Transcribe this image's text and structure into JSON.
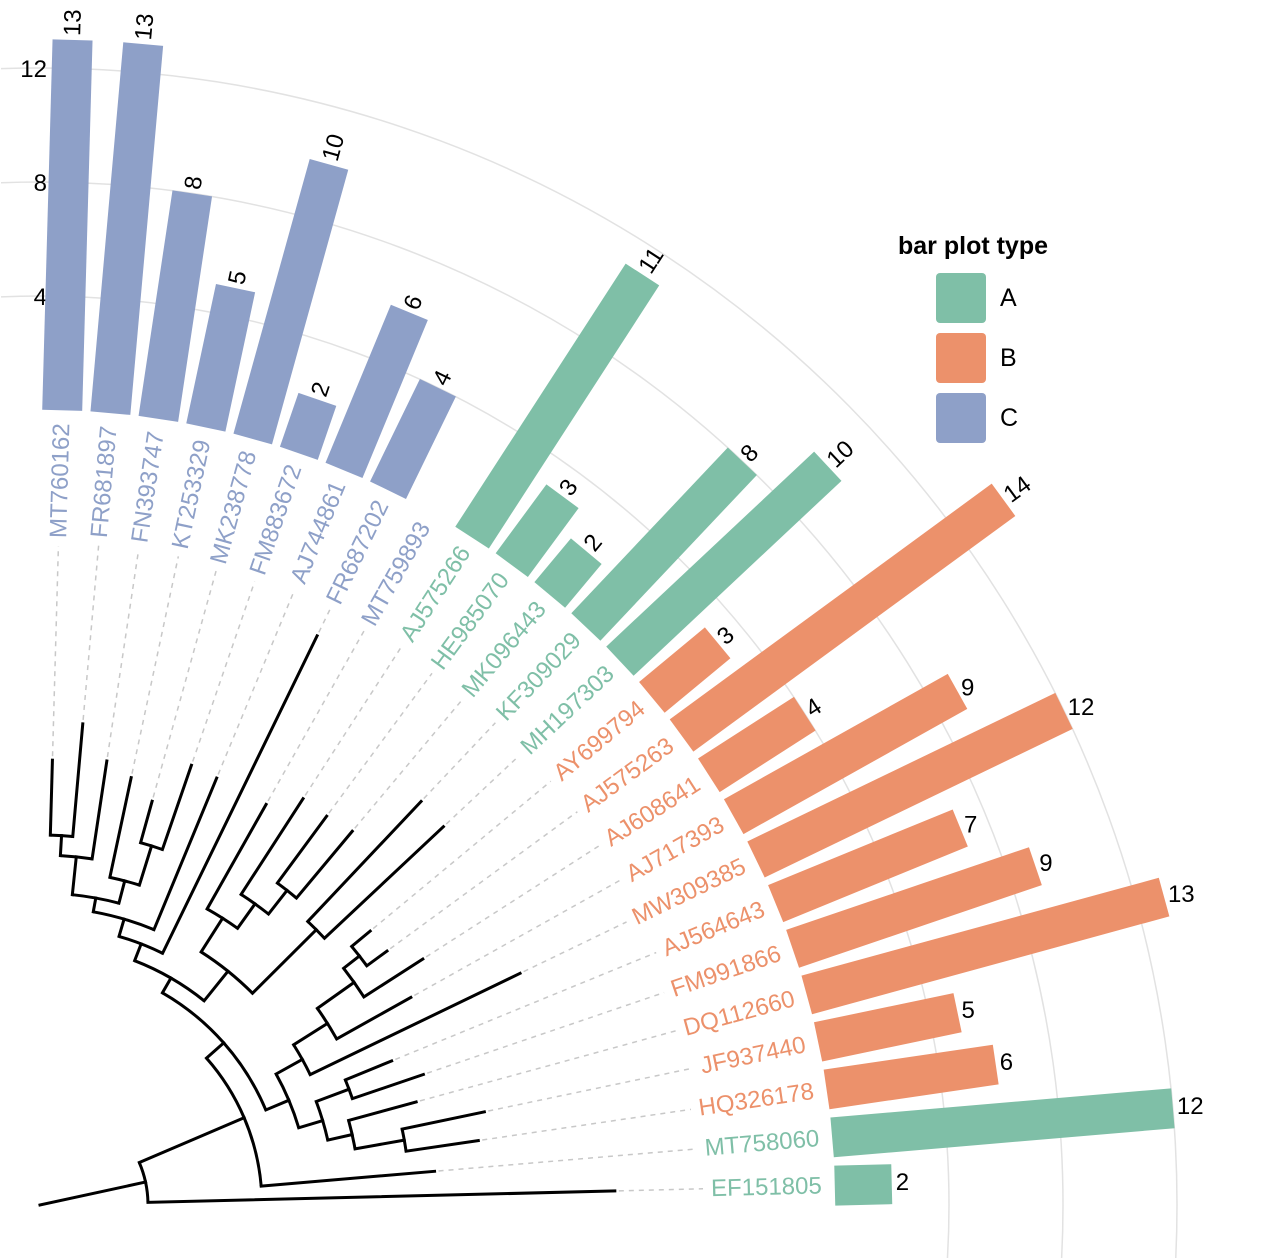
{
  "chart_data": {
    "type": "bar",
    "layout": "circular phylogenetic tree with radial bar plot",
    "legend": {
      "title": "bar plot type",
      "placement": "top-right",
      "entries": [
        {
          "label": "A",
          "color": "#7fbfa7"
        },
        {
          "label": "B",
          "color": "#ec916b"
        },
        {
          "label": "C",
          "color": "#8ea0c8"
        }
      ]
    },
    "radial_axis": {
      "ticks": [
        "4",
        "8",
        "12"
      ],
      "tick_values": [
        4,
        8,
        12
      ],
      "grid": true
    },
    "leaves": [
      {
        "id": "MT760162",
        "group": "C",
        "value": 13,
        "tip": 4.45
      },
      {
        "id": "FR681897",
        "group": "C",
        "value": 13,
        "tip": 4.83
      },
      {
        "id": "FN393747",
        "group": "C",
        "value": 8,
        "tip": 4.49
      },
      {
        "id": "KT253329",
        "group": "C",
        "value": 5,
        "tip": 4.37
      },
      {
        "id": "MK238778",
        "group": "C",
        "value": 10,
        "tip": 4.19
      },
      {
        "id": "FM883672",
        "group": "C",
        "value": 2,
        "tip": 4.65
      },
      {
        "id": "AJ744861",
        "group": "C",
        "value": 6,
        "tip": 4.62
      },
      {
        "id": "FR687202",
        "group": "C",
        "value": 4,
        "tip": 6.33
      },
      {
        "id": "MT759893",
        "group": "C",
        "value": null,
        "tip": 4.6
      },
      {
        "id": "AJ575266",
        "group": "A",
        "value": 11,
        "tip": 4.84
      },
      {
        "id": "HE985070",
        "group": "A",
        "value": 3,
        "tip": 4.83
      },
      {
        "id": "MK096443",
        "group": "A",
        "value": 2,
        "tip": 4.87
      },
      {
        "id": "KF309029",
        "group": "A",
        "value": 8,
        "tip": 5.55
      },
      {
        "id": "MH197303",
        "group": "A",
        "value": 10,
        "tip": 5.53
      },
      {
        "id": "AY699794",
        "group": "B",
        "value": 3,
        "tip": 4.29
      },
      {
        "id": "AJ575263",
        "group": "B",
        "value": 14,
        "tip": 4.3
      },
      {
        "id": "AJ608641",
        "group": "B",
        "value": 4,
        "tip": 4.55
      },
      {
        "id": "AJ717393",
        "group": "B",
        "value": 9,
        "tip": 4.25
      },
      {
        "id": "MW309385",
        "group": "B",
        "value": 12,
        "tip": 5.33
      },
      {
        "id": "AJ564643",
        "group": "B",
        "value": 7,
        "tip": 3.8
      },
      {
        "id": "FM991866",
        "group": "B",
        "value": 9,
        "tip": 4.05
      },
      {
        "id": "DQ112660",
        "group": "B",
        "value": 13,
        "tip": 3.9
      },
      {
        "id": "JF937440",
        "group": "B",
        "value": 5,
        "tip": 4.54
      },
      {
        "id": "HQ326178",
        "group": "B",
        "value": 6,
        "tip": 4.43
      },
      {
        "id": "MT758060",
        "group": "A",
        "value": 12,
        "tip": 3.96
      },
      {
        "id": "EF151805",
        "group": "A",
        "value": 2,
        "tip": 5.75
      }
    ],
    "tree": {
      "h": 1.08,
      "children": [
        {
          "h": 2.22,
          "children": [
            {
              "h": 2.45,
              "children": [
                {
                  "h": 2.62,
                  "children": [
                    {
                      "h": 2.8,
                      "children": [
                        {
                          "h": 2.98,
                          "children": [
                            {
                              "h": 3.12,
                              "children": [
                                {
                                  "h": 3.5,
                                  "children": [
                                    {
                                      "h": 3.7,
                                      "children": [
                                        0,
                                        1
                                      ]
                                    },
                                    2
                                  ]
                                },
                                {
                                  "h": 3.35,
                                  "children": [
                                    3,
                                    {
                                      "h": 3.76,
                                      "children": [
                                        4,
                                        5
                                      ]
                                    }
                                  ]
                                }
                              ]
                            },
                            6
                          ]
                        },
                        7
                      ]
                    },
                    {
                      "h": 3.0,
                      "children": [
                        {
                          "h": 3.4,
                          "children": [
                            8,
                            {
                              "h": 3.7,
                              "children": [
                                9,
                                {
                                  "h": 4.0,
                                  "children": [
                                    10,
                                    11
                                  ]
                                }
                              ]
                            }
                          ]
                        },
                        {
                          "h": 3.9,
                          "children": [
                            12,
                            13
                          ]
                        }
                      ]
                    }
                  ]
                },
                {
                  "h": 2.7,
                  "children": [
                    {
                      "h": 3.0,
                      "children": [
                        {
                          "h": 3.4,
                          "children": [
                            {
                              "h": 3.85,
                              "children": [
                                {
                                  "h": 4.05,
                                  "children": [
                                    14,
                                    15
                                  ]
                                },
                                16
                              ]
                            },
                            17
                          ]
                        },
                        18
                      ]
                    },
                    {
                      "h": 2.95,
                      "children": [
                        {
                          "h": 3.3,
                          "children": [
                            19,
                            20
                          ]
                        },
                        {
                          "h": 3.2,
                          "children": [
                            21,
                            {
                              "h": 3.7,
                              "children": [
                                22,
                                23
                              ]
                            }
                          ]
                        }
                      ]
                    }
                  ]
                }
              ]
            },
            24
          ]
        },
        25
      ]
    }
  }
}
